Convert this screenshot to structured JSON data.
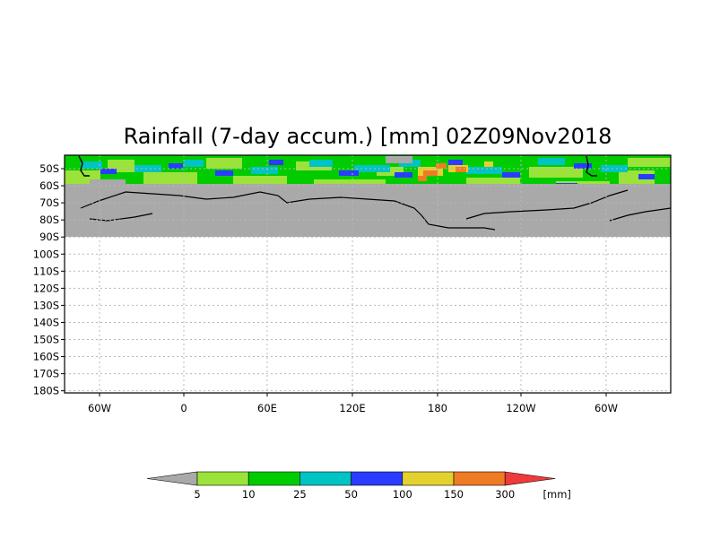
{
  "title": "Rainfall (7-day accum.) [mm] 02Z09Nov2018",
  "map": {
    "lat_labels": [
      "50S",
      "60S",
      "70S",
      "80S",
      "90S",
      "100S",
      "110S",
      "120S",
      "130S",
      "140S",
      "150S",
      "160S",
      "170S",
      "180S"
    ],
    "lon_labels": [
      "60W",
      "0",
      "60E",
      "120E",
      "180",
      "120W",
      "60W"
    ],
    "land_color": "#a9a9a9",
    "outline_color": "#000000"
  },
  "colorbar": {
    "levels": [
      "5",
      "10",
      "25",
      "50",
      "100",
      "150",
      "300"
    ],
    "unit": "[mm]",
    "colors": [
      "#a9a9a9",
      "#9be33a",
      "#00cc00",
      "#00c3c3",
      "#2a3dff",
      "#e5d12e",
      "#ef7b25",
      "#ef3a3a"
    ]
  }
}
